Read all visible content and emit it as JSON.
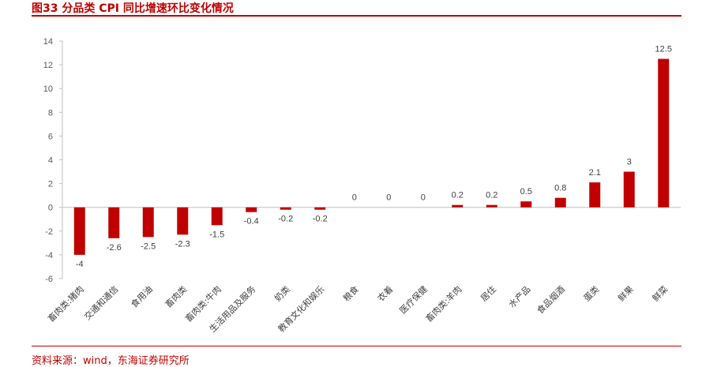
{
  "figure": {
    "title": "图33  分品类 CPI 同比增速环比变化情况",
    "source": "资料来源：wind，东海证券研究所"
  },
  "colors": {
    "bar": "#c00000",
    "axis": "#bfbfbf",
    "accent": "#c00000"
  },
  "chart_data": {
    "type": "bar",
    "title": "",
    "xlabel": "",
    "ylabel": "",
    "ylim": [
      -6,
      14
    ],
    "yticks": [
      -6,
      -4,
      -2,
      0,
      2,
      4,
      6,
      8,
      10,
      12,
      14
    ],
    "grid": false,
    "legend": "none",
    "categories": [
      "畜肉类:猪肉",
      "交通和通信",
      "食用油",
      "畜肉类",
      "畜肉类:牛肉",
      "生活用品及服务",
      "奶类",
      "教育文化和娱乐",
      "粮食",
      "衣着",
      "医疗保健",
      "畜肉类:羊肉",
      "居住",
      "水产品",
      "食品烟酒",
      "蛋类",
      "鲜果",
      "鲜菜"
    ],
    "values": [
      -4,
      -2.6,
      -2.5,
      -2.3,
      -1.5,
      -0.4,
      -0.2,
      -0.2,
      0,
      0,
      0,
      0.2,
      0.2,
      0.5,
      0.8,
      2.1,
      3,
      12.5
    ],
    "value_labels": [
      "-4",
      "-2.6",
      "-2.5",
      "-2.3",
      "-1.5",
      "-0.4",
      "-0.2",
      "-0.2",
      "0",
      "0",
      "0",
      "0.2",
      "0.2",
      "0.5",
      "0.8",
      "2.1",
      "3",
      "12.5"
    ]
  }
}
